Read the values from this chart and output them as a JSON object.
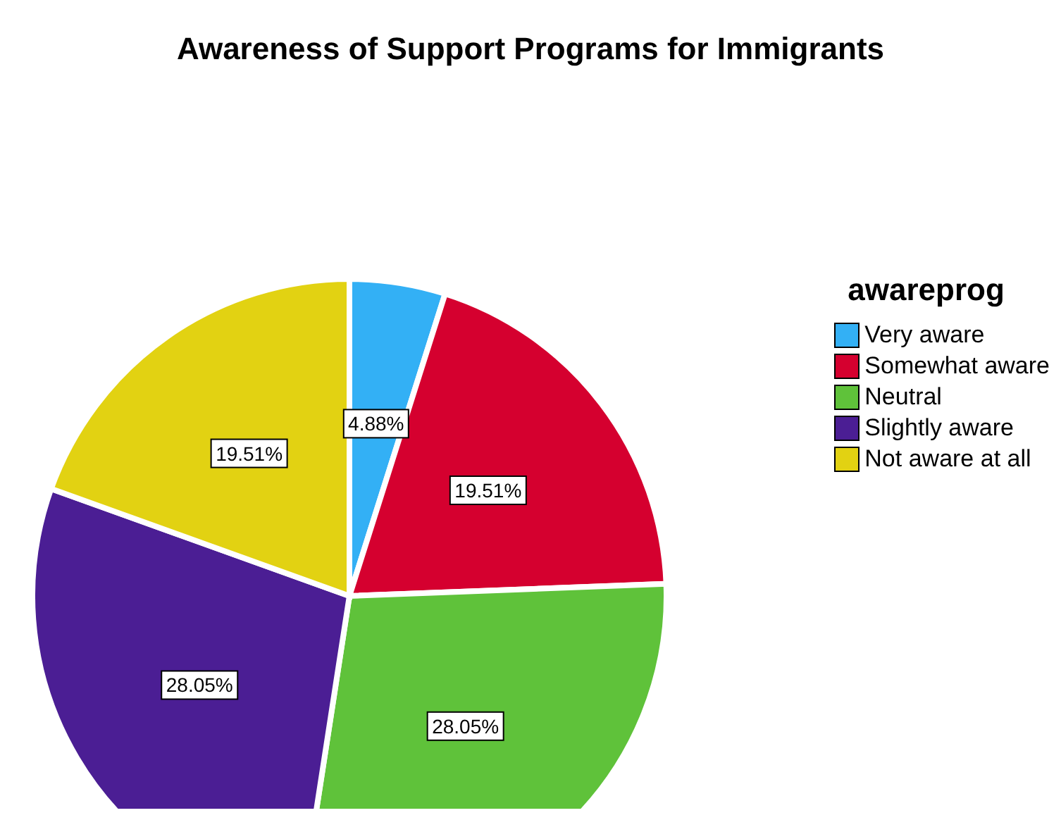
{
  "chart_data": {
    "type": "pie",
    "title": "Awareness of Support Programs for Immigrants",
    "legend_title": "awareprog",
    "categories": [
      "Very aware",
      "Somewhat aware",
      "Neutral",
      "Slightly aware",
      "Not aware at all"
    ],
    "values": [
      4.88,
      19.51,
      28.05,
      28.05,
      19.51
    ],
    "value_labels": [
      "4.88%",
      "19.51%",
      "28.05%",
      "28.05%",
      "19.51%"
    ],
    "colors": [
      "#33b0f5",
      "#d5002f",
      "#5fc23a",
      "#4b1e94",
      "#e2d212"
    ],
    "legend": "right"
  }
}
